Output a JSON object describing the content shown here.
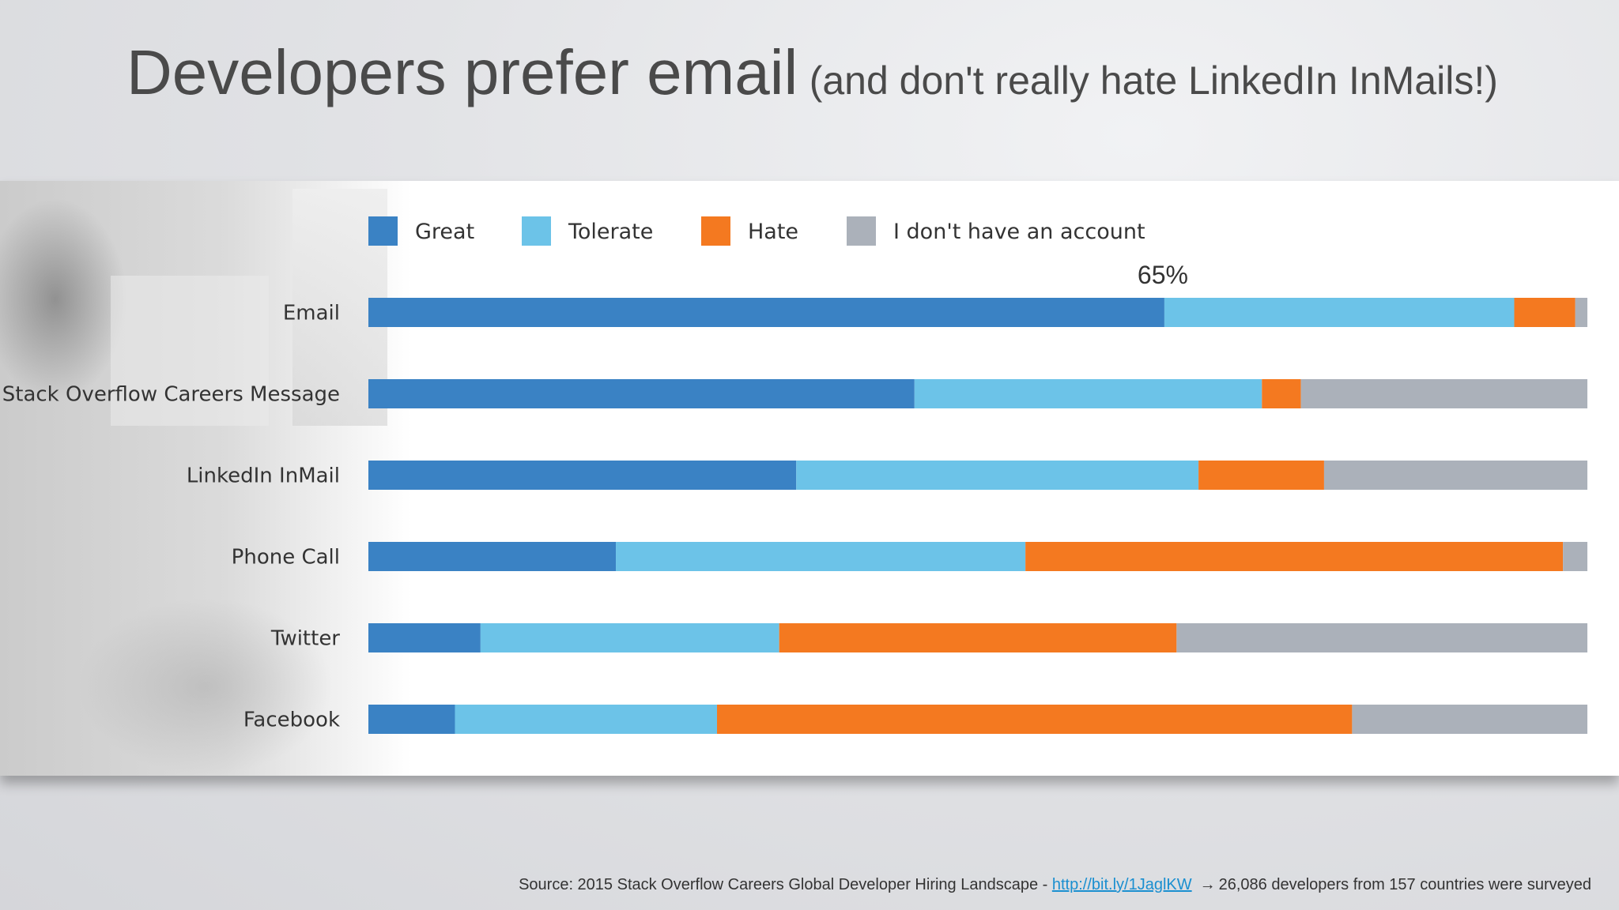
{
  "title": {
    "main": "Developers prefer email",
    "sub": "(and don't really hate LinkedIn InMails!)"
  },
  "colors": {
    "great": "#3a82c4",
    "tolerate": "#6cc3e8",
    "hate": "#f47920",
    "no_account": "#abb1ba",
    "label_text": "#333333"
  },
  "chart_data": {
    "type": "bar",
    "orientation": "horizontal",
    "stacked": true,
    "categories": [
      "Email",
      "Stack Overflow Careers Message",
      "LinkedIn InMail",
      "Phone Call",
      "Twitter",
      "Facebook"
    ],
    "series": [
      {
        "name": "Great",
        "values": [
          65.3,
          44.8,
          35.1,
          20.3,
          9.2,
          7.1
        ]
      },
      {
        "name": "Tolerate",
        "values": [
          28.7,
          28.5,
          33.0,
          33.6,
          24.5,
          21.5
        ]
      },
      {
        "name": "Hate",
        "values": [
          5.0,
          3.2,
          10.3,
          44.1,
          32.6,
          52.1
        ]
      },
      {
        "name": "I don't have an account",
        "values": [
          1.0,
          23.5,
          21.6,
          2.0,
          33.7,
          19.3
        ]
      }
    ],
    "annotations": [
      {
        "category": "Email",
        "text": "65%"
      }
    ],
    "xlim": [
      0,
      100
    ],
    "legend_position": "top"
  },
  "source": {
    "prefix": "Source: 2015 Stack Overflow Careers Global Developer Hiring Landscape - ",
    "link": "http://bit.ly/1JaglKW",
    "arrow": "→",
    "suffix": "26,086 developers from 157 countries were surveyed"
  }
}
